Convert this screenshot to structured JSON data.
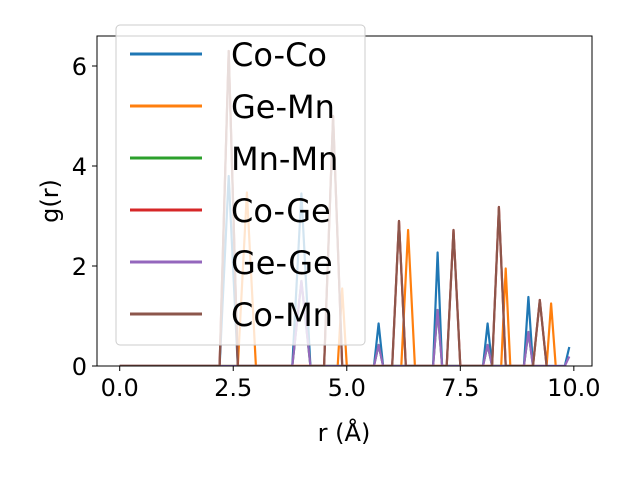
{
  "chart_data": {
    "type": "line",
    "title": "",
    "xlabel": "r (Å)",
    "ylabel": "g(r)",
    "xlim": [
      -0.5,
      10.4
    ],
    "ylim": [
      0,
      6.6
    ],
    "xticks": [
      0.0,
      2.5,
      5.0,
      7.5,
      10.0
    ],
    "xtick_labels": [
      "0.0",
      "2.5",
      "5.0",
      "7.5",
      "10.0"
    ],
    "yticks": [
      0,
      2,
      4,
      6
    ],
    "ytick_labels": [
      "0",
      "2",
      "4",
      "6"
    ],
    "grid": false,
    "legend_position": "upper-left",
    "series": [
      {
        "name": "Co-Co",
        "color": "#1f77b4",
        "x": [
          0.0,
          2.2,
          2.4,
          2.6,
          3.8,
          4.0,
          4.2,
          5.6,
          5.7,
          5.8,
          6.9,
          7.0,
          7.1,
          8.0,
          8.1,
          8.2,
          8.9,
          9.0,
          9.1,
          9.8,
          9.9
        ],
        "y": [
          0,
          0,
          3.8,
          0,
          0,
          3.45,
          0,
          0,
          0.85,
          0,
          0,
          2.27,
          0,
          0,
          0.85,
          0,
          0,
          1.38,
          0,
          0,
          0.38
        ]
      },
      {
        "name": "Ge-Mn",
        "color": "#ff7f0e",
        "x": [
          0.0,
          2.6,
          2.8,
          3.0,
          4.8,
          4.9,
          5.0,
          6.2,
          6.35,
          6.5,
          8.4,
          8.5,
          8.6,
          9.4,
          9.5,
          9.6
        ],
        "y": [
          0,
          0,
          3.47,
          0,
          0,
          1.55,
          0,
          0,
          2.72,
          0,
          0,
          1.95,
          0,
          0,
          1.25,
          0
        ]
      },
      {
        "name": "Mn-Mn",
        "color": "#2ca02c",
        "x": [
          0.0,
          3.8,
          4.0,
          4.2,
          5.6,
          5.7,
          5.8,
          6.9,
          7.0,
          7.1,
          8.0,
          8.1,
          8.2,
          8.9,
          9.0,
          9.1
        ],
        "y": [
          0,
          0,
          1.7,
          0,
          0,
          0.42,
          0,
          0,
          1.12,
          0,
          0,
          0.42,
          0,
          0,
          0.68,
          0
        ]
      },
      {
        "name": "Co-Ge",
        "color": "#d62728",
        "x": [
          0.0,
          2.2,
          2.4,
          2.6,
          4.5,
          4.7,
          4.9,
          6.0,
          6.15,
          6.3,
          7.2,
          7.35,
          7.5,
          8.2,
          8.35,
          8.5,
          9.1,
          9.25,
          9.4
        ],
        "y": [
          0,
          0,
          6.3,
          0,
          0,
          5.0,
          0,
          0,
          2.9,
          0,
          0,
          2.72,
          0,
          0,
          3.18,
          0,
          0,
          1.32,
          0
        ]
      },
      {
        "name": "Ge-Ge",
        "color": "#9467bd",
        "x": [
          0.0,
          3.8,
          4.0,
          4.2,
          5.6,
          5.7,
          5.8,
          6.9,
          7.0,
          7.1,
          8.0,
          8.1,
          8.2,
          8.9,
          9.0,
          9.1,
          9.8,
          9.9
        ],
        "y": [
          0,
          0,
          1.7,
          0,
          0,
          0.42,
          0,
          0,
          1.12,
          0,
          0,
          0.42,
          0,
          0,
          0.68,
          0,
          0,
          0.19
        ]
      },
      {
        "name": "Co-Mn",
        "color": "#8c564b",
        "x": [
          0.0,
          2.2,
          2.4,
          2.6,
          4.5,
          4.7,
          4.9,
          6.0,
          6.15,
          6.3,
          7.2,
          7.35,
          7.5,
          8.2,
          8.35,
          8.5,
          9.1,
          9.25,
          9.4
        ],
        "y": [
          0,
          0,
          6.3,
          0,
          0,
          5.0,
          0,
          0,
          2.9,
          0,
          0,
          2.72,
          0,
          0,
          3.18,
          0,
          0,
          1.32,
          0
        ]
      }
    ]
  }
}
